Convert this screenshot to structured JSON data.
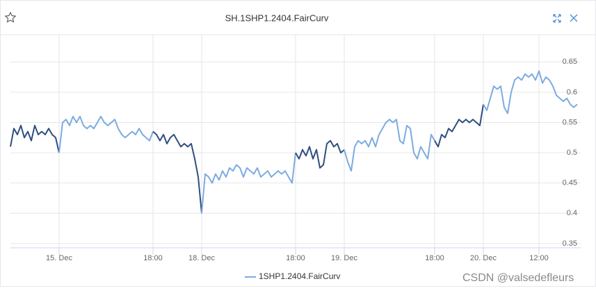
{
  "chart_data": {
    "type": "line",
    "title": "SH.1SHP1.2404.FairCurv",
    "categories": [
      null,
      null,
      null,
      null,
      null,
      null,
      null,
      null,
      null,
      null,
      null,
      null,
      null,
      null,
      "15. Dec",
      null,
      null,
      null,
      null,
      null,
      null,
      null,
      null,
      null,
      null,
      null,
      null,
      null,
      null,
      null,
      null,
      null,
      null,
      null,
      null,
      null,
      null,
      null,
      null,
      null,
      null,
      "18:00",
      null,
      null,
      null,
      null,
      null,
      null,
      null,
      null,
      null,
      null,
      null,
      null,
      null,
      "18. Dec",
      null,
      null,
      null,
      null,
      null,
      null,
      null,
      null,
      null,
      null,
      null,
      null,
      null,
      null,
      null,
      null,
      null,
      null,
      null,
      null,
      null,
      null,
      null,
      null,
      null,
      null,
      "18:00",
      null,
      null,
      null,
      null,
      null,
      null,
      null,
      null,
      null,
      null,
      null,
      null,
      null,
      "19. Dec",
      null,
      null,
      null,
      null,
      null,
      null,
      null,
      null,
      null,
      null,
      null,
      null,
      null,
      null,
      null,
      null,
      null,
      null,
      null,
      null,
      null,
      null,
      null,
      null,
      null,
      "18:00",
      null,
      null,
      null,
      null,
      null,
      null,
      null,
      null,
      null,
      null,
      null,
      null,
      null,
      "20. Dec",
      null,
      null,
      null,
      null,
      null,
      null,
      null,
      null,
      null,
      null,
      null,
      null,
      null,
      null,
      null,
      "12:00",
      null,
      null,
      null,
      null,
      null,
      null,
      null,
      null,
      null,
      null,
      null
    ],
    "series": [
      {
        "name": "1SHP1.2404.FairCurv",
        "color": "#7cabe0",
        "values": [
          0.51,
          0.54,
          0.53,
          0.545,
          0.525,
          0.535,
          0.52,
          0.545,
          0.53,
          0.535,
          0.53,
          0.54,
          0.53,
          0.525,
          0.5,
          0.55,
          0.555,
          0.545,
          0.56,
          0.55,
          0.56,
          0.545,
          0.54,
          0.545,
          0.54,
          0.55,
          0.56,
          0.55,
          0.545,
          0.55,
          0.555,
          0.54,
          0.53,
          0.525,
          0.53,
          0.535,
          0.53,
          0.54,
          0.53,
          0.525,
          0.52,
          0.535,
          0.53,
          0.52,
          0.53,
          0.515,
          0.525,
          0.53,
          0.52,
          0.51,
          0.515,
          0.51,
          0.515,
          0.49,
          0.46,
          0.4,
          0.465,
          0.46,
          0.45,
          0.465,
          0.455,
          0.47,
          0.46,
          0.475,
          0.47,
          0.48,
          0.475,
          0.46,
          0.475,
          0.47,
          0.465,
          0.475,
          0.46,
          0.465,
          0.47,
          0.46,
          0.465,
          0.47,
          0.465,
          0.47,
          0.46,
          0.45,
          0.5,
          0.49,
          0.505,
          0.495,
          0.51,
          0.49,
          0.505,
          0.475,
          0.48,
          0.515,
          0.52,
          0.51,
          0.515,
          0.5,
          0.505,
          0.485,
          0.47,
          0.51,
          0.52,
          0.515,
          0.52,
          0.51,
          0.525,
          0.51,
          0.53,
          0.54,
          0.55,
          0.555,
          0.55,
          0.555,
          0.52,
          0.515,
          0.545,
          0.54,
          0.5,
          0.49,
          0.51,
          0.5,
          0.49,
          0.53,
          0.52,
          0.51,
          0.53,
          0.525,
          0.54,
          0.535,
          0.545,
          0.555,
          0.55,
          0.555,
          0.55,
          0.555,
          0.55,
          0.545,
          0.58,
          0.57,
          0.59,
          0.61,
          0.605,
          0.61,
          0.575,
          0.565,
          0.6,
          0.62,
          0.625,
          0.62,
          0.63,
          0.625,
          0.63,
          0.62,
          0.635,
          0.615,
          0.625,
          0.62,
          0.61,
          0.595,
          0.59,
          0.585,
          0.59,
          0.58,
          0.575,
          0.58
        ]
      }
    ],
    "zones": [
      {
        "from": 0,
        "to": 14,
        "color": "#2f4d80"
      },
      {
        "from": 41,
        "to": 55,
        "color": "#2f4d80"
      },
      {
        "from": 82,
        "to": 96,
        "color": "#2f4d80"
      },
      {
        "from": 122,
        "to": 136,
        "color": "#2f4d80"
      }
    ],
    "ylim": [
      0.343,
      0.695
    ],
    "yticks": [
      0.35,
      0.4,
      0.45,
      0.5,
      0.55,
      0.6,
      0.65
    ],
    "grid": true,
    "legend": "bottom",
    "watermark": "CSDN @valsedefleurs"
  }
}
